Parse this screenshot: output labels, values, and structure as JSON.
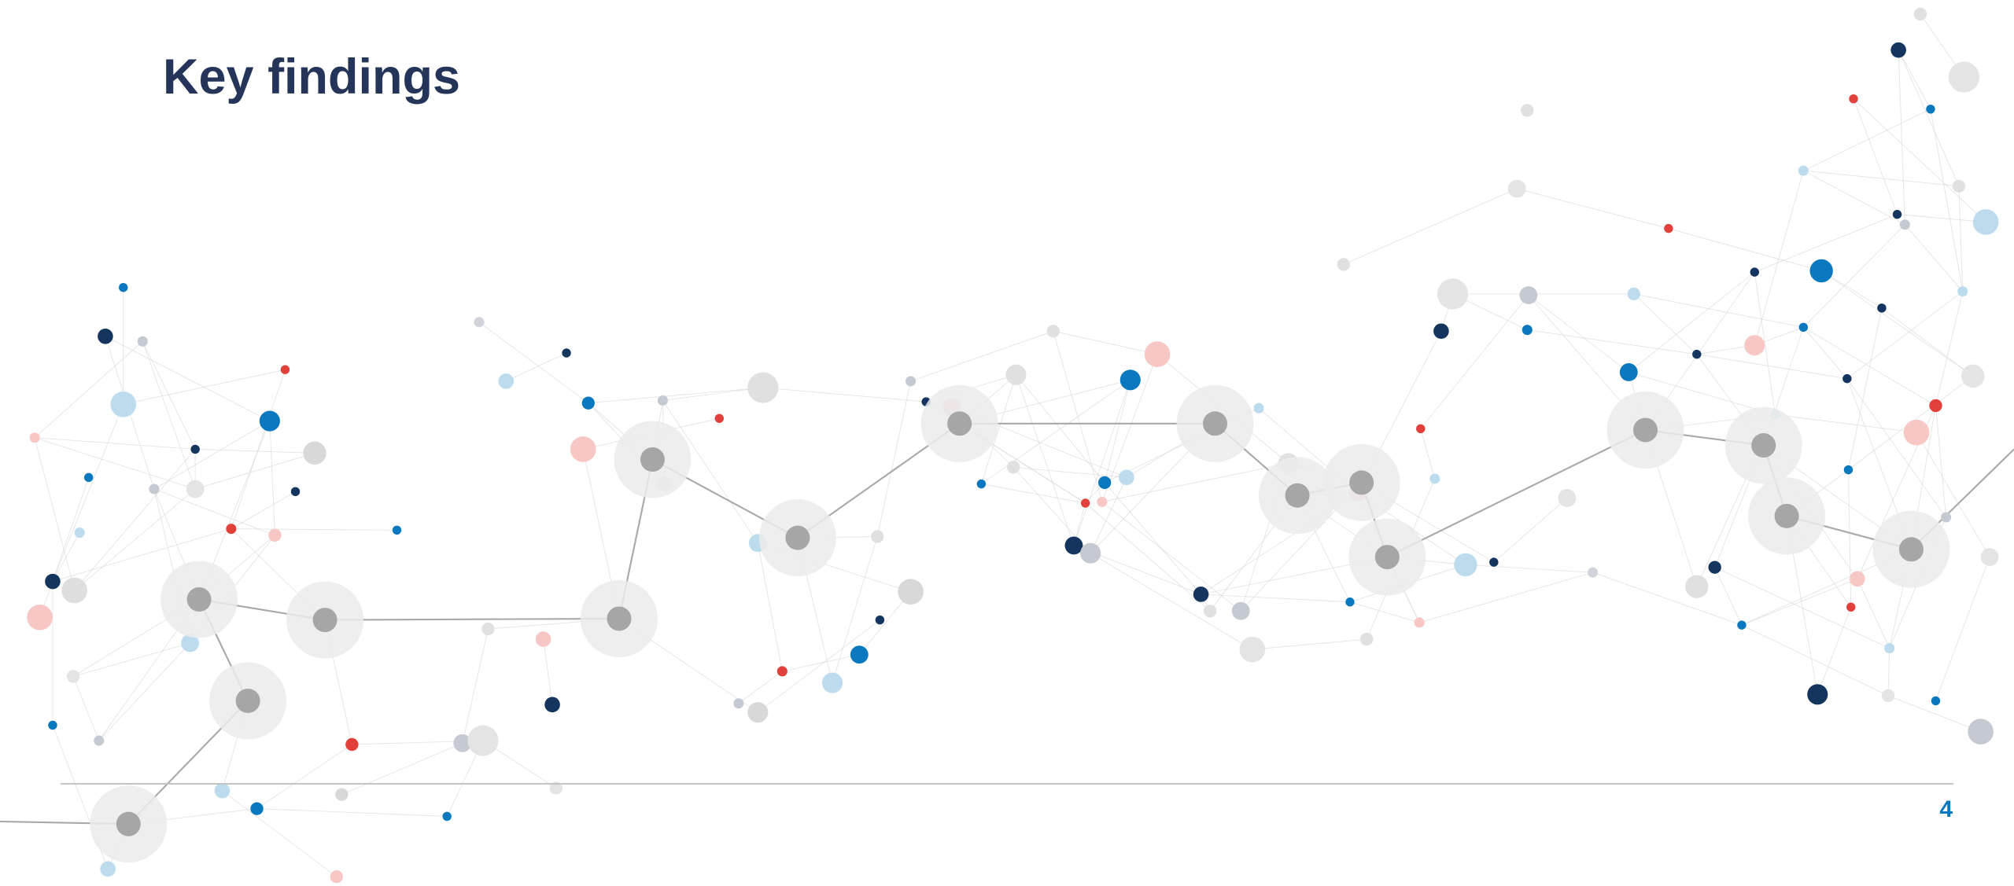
{
  "header": {
    "title": "Key findings"
  },
  "footer": {
    "page_number": "4"
  }
}
